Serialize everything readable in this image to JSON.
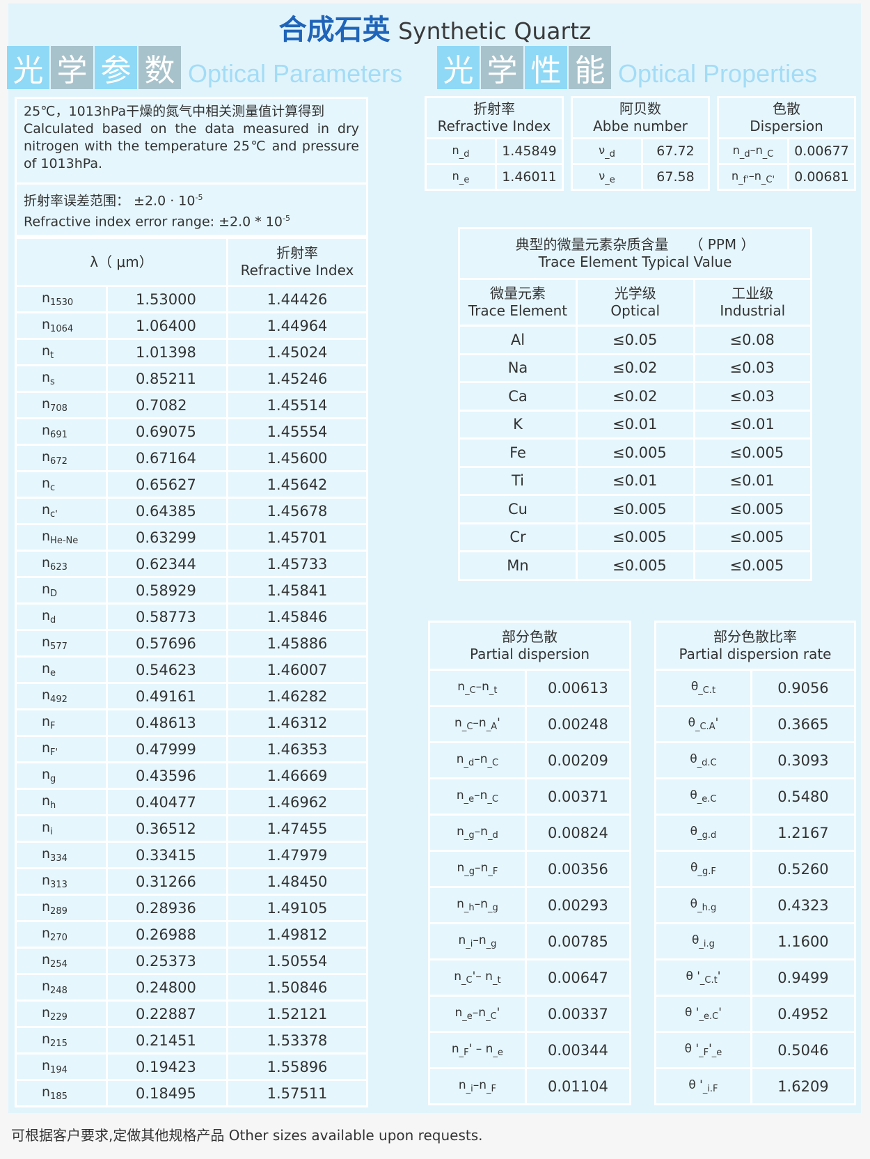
{
  "title": {
    "cn": "合成石英",
    "en": "Synthetic  Quartz"
  },
  "left_section": {
    "tiles": [
      "光",
      "学",
      "参",
      "数"
    ],
    "en": "Optical Parameters"
  },
  "right_section": {
    "tiles": [
      "光",
      "学",
      "性",
      "能"
    ],
    "en": "Optical Properties"
  },
  "note": {
    "cn": "25℃，1013hPa干燥的氮气中相关测量值计算得到",
    "en": "Calculated based on the data measured in dry nitrogen with the temperature 25℃ and pressure of 1013hPa."
  },
  "error": {
    "cn": "折射率误差范围： ±2.0 · 10",
    "cn_exp": "-5",
    "en": "Refractive index error range:  ±2.0 * 10",
    "en_exp": "-5"
  },
  "index_table": {
    "col1": "λ（ μm）",
    "col2_cn": "折射率",
    "col2_en": "Refractive Index",
    "rows": [
      [
        "1530",
        "1.53000",
        "1.44426"
      ],
      [
        "1064",
        "1.06400",
        "1.44964"
      ],
      [
        "t",
        "1.01398",
        "1.45024"
      ],
      [
        "s",
        "0.85211",
        "1.45246"
      ],
      [
        "708",
        "0.7082",
        "1.45514"
      ],
      [
        "691",
        "0.69075",
        "1.45554"
      ],
      [
        "672",
        "0.67164",
        "1.45600"
      ],
      [
        "c",
        "0.65627",
        "1.45642"
      ],
      [
        "c'",
        "0.64385",
        "1.45678"
      ],
      [
        "He-Ne",
        "0.63299",
        "1.45701"
      ],
      [
        "623",
        "0.62344",
        "1.45733"
      ],
      [
        "D",
        "0.58929",
        "1.45841"
      ],
      [
        "d",
        "0.58773",
        "1.45846"
      ],
      [
        "577",
        "0.57696",
        "1.45886"
      ],
      [
        "e",
        "0.54623",
        "1.46007"
      ],
      [
        "492",
        "0.49161",
        "1.46282"
      ],
      [
        "F",
        "0.48613",
        "1.46312"
      ],
      [
        "F'",
        "0.47999",
        "1.46353"
      ],
      [
        "g",
        "0.43596",
        "1.46669"
      ],
      [
        "h",
        "0.40477",
        "1.46962"
      ],
      [
        "i",
        "0.36512",
        "1.47455"
      ],
      [
        "334",
        "0.33415",
        "1.47979"
      ],
      [
        "313",
        "0.31266",
        "1.48450"
      ],
      [
        "289",
        "0.28936",
        "1.49105"
      ],
      [
        "270",
        "0.26988",
        "1.49812"
      ],
      [
        "254",
        "0.25373",
        "1.50554"
      ],
      [
        "248",
        "0.24800",
        "1.50846"
      ],
      [
        "229",
        "0.22887",
        "1.52121"
      ],
      [
        "215",
        "0.21451",
        "1.53378"
      ],
      [
        "194",
        "0.19423",
        "1.55896"
      ],
      [
        "185",
        "0.18495",
        "1.57511"
      ]
    ]
  },
  "props": [
    {
      "cn": "折射率",
      "en": "Refractive Index",
      "rows": [
        [
          [
            "n",
            "_d"
          ],
          "1.45849"
        ],
        [
          [
            "n",
            "_e"
          ],
          "1.46011"
        ]
      ]
    },
    {
      "cn": "阿贝数",
      "en": "Abbe number",
      "rows": [
        [
          [
            "ν",
            "_d"
          ],
          "67.72"
        ],
        [
          [
            "ν",
            "_e"
          ],
          "67.58"
        ]
      ]
    },
    {
      "cn": "色散",
      "en": "Dispersion",
      "rows": [
        [
          [
            "n",
            "_d",
            "–n",
            "_C"
          ],
          "0.00677"
        ],
        [
          [
            "n",
            "_f'",
            "–n",
            "_C'"
          ],
          "0.00681"
        ]
      ]
    }
  ],
  "trace": {
    "title_cn": "典型的微量元素杂质含量",
    "unit": "（ PPM ）",
    "title_en": "Trace Element Typical Value",
    "headers": [
      [
        "微量元素",
        "Trace Element"
      ],
      [
        "光学级",
        "Optical"
      ],
      [
        "工业级",
        "Industrial"
      ]
    ],
    "rows": [
      [
        "Al",
        "≤0.05",
        "≤0.08"
      ],
      [
        "Na",
        "≤0.02",
        "≤0.03"
      ],
      [
        "Ca",
        "≤0.02",
        "≤0.03"
      ],
      [
        "K",
        "≤0.01",
        "≤0.01"
      ],
      [
        "Fe",
        "≤0.005",
        "≤0.005"
      ],
      [
        "Ti",
        "≤0.01",
        "≤0.01"
      ],
      [
        "Cu",
        "≤0.005",
        "≤0.005"
      ],
      [
        "Cr",
        "≤0.005",
        "≤0.005"
      ],
      [
        "Mn",
        "≤0.005",
        "≤0.005"
      ]
    ]
  },
  "partial": {
    "cn": "部分色散",
    "en": "Partial dispersion",
    "rows": [
      [
        [
          "n",
          "_C",
          "–n",
          "_t"
        ],
        "0.00613"
      ],
      [
        [
          "n",
          "_C",
          "–n",
          "_A",
          "'"
        ],
        "0.00248"
      ],
      [
        [
          "n",
          "_d",
          "–n",
          "_C"
        ],
        "0.00209"
      ],
      [
        [
          "n",
          "_e",
          "–n",
          "_C"
        ],
        "0.00371"
      ],
      [
        [
          "n",
          "_g",
          "–n",
          "_d"
        ],
        "0.00824"
      ],
      [
        [
          "n",
          "_g",
          "–n",
          "_F"
        ],
        "0.00356"
      ],
      [
        [
          "n",
          "_h",
          "–n",
          "_g"
        ],
        "0.00293"
      ],
      [
        [
          "n",
          "_i",
          "–n",
          "_g"
        ],
        "0.00785"
      ],
      [
        [
          "n",
          "_C",
          "'– n",
          "_t"
        ],
        "0.00647"
      ],
      [
        [
          "n",
          "_e",
          "–n",
          "_C",
          "'"
        ],
        "0.00337"
      ],
      [
        [
          "n",
          "_F",
          "' – n",
          "_e"
        ],
        "0.00344"
      ],
      [
        [
          "n",
          "_i",
          "–n",
          "_F"
        ],
        "0.01104"
      ]
    ]
  },
  "rate": {
    "cn": "部分色散比率",
    "en": "Partial dispersion rate",
    "rows": [
      [
        [
          "θ",
          "_C.t"
        ],
        "0.9056"
      ],
      [
        [
          "θ",
          "_C.A",
          "'"
        ],
        "0.3665"
      ],
      [
        [
          "θ",
          "_d.C"
        ],
        "0.3093"
      ],
      [
        [
          "θ",
          "_e.C"
        ],
        "0.5480"
      ],
      [
        [
          "θ",
          "_g.d"
        ],
        "1.2167"
      ],
      [
        [
          "θ",
          "_g.F"
        ],
        "0.5260"
      ],
      [
        [
          "θ",
          "_h.g"
        ],
        "0.4323"
      ],
      [
        [
          "θ",
          "_i.g"
        ],
        "1.1600"
      ],
      [
        [
          "θ '",
          "_C.t",
          "'"
        ],
        "0.9499"
      ],
      [
        [
          "θ '",
          "_e.C",
          "'"
        ],
        "0.4952"
      ],
      [
        [
          "θ '",
          "_F",
          "'",
          "_e"
        ],
        "0.5046"
      ],
      [
        [
          "θ '",
          "_i.F"
        ],
        "1.6209"
      ]
    ]
  },
  "footer": "可根据客户要求,定做其他规格产品  Other sizes available upon requests.",
  "colors": {
    "background": "#e1f4fc",
    "title_blue": "#1f64b8",
    "tile_blue": "#8fd9f6",
    "tile_grey": "#a8c2cb",
    "section_text": "#a3dcf6"
  }
}
